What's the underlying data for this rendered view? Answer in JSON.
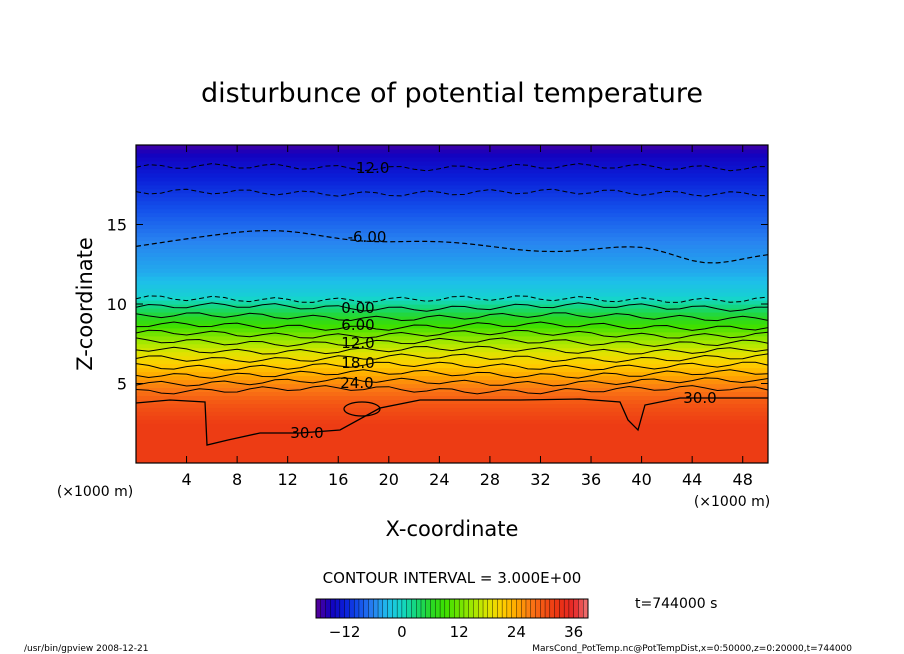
{
  "chart_data": {
    "type": "heatmap",
    "title": "disturbunce of potential temperature",
    "xlabel": "X-coordinate",
    "ylabel": "Z-coordinate",
    "x_unit_left": "(×1000 m)",
    "x_unit_right": "(×1000 m)",
    "xlim": [
      0,
      50
    ],
    "ylim": [
      0,
      20
    ],
    "x_ticks": [
      "4",
      "8",
      "12",
      "16",
      "20",
      "24",
      "28",
      "32",
      "36",
      "40",
      "44",
      "48"
    ],
    "y_ticks": [
      "5",
      "10",
      "15"
    ],
    "contour_interval_text": "CONTOUR INTERVAL = 3.000E+00",
    "contour_labels": [
      "-12.0",
      "-6.00",
      "0.00",
      "6.00",
      "12.0",
      "18.0",
      "24.0",
      "30.0",
      "30.0"
    ],
    "colorbar": {
      "min": -18,
      "max": 39,
      "tick_labels": [
        "-12",
        "0",
        "12",
        "24",
        "36"
      ]
    },
    "time_label": "t=744000 s",
    "footer_left": "/usr/bin/gpview   2008-12-21",
    "footer_right": "MarsCond_PotTemp.nc@PotTempDist,x=0:50000,z=0:20000,t=744000",
    "colors": {
      "cold": "#0a1fd8",
      "neutral": "#22d0d8",
      "mid": "#3ce000",
      "warm": "#ffd000",
      "hot": "#f03018"
    }
  }
}
